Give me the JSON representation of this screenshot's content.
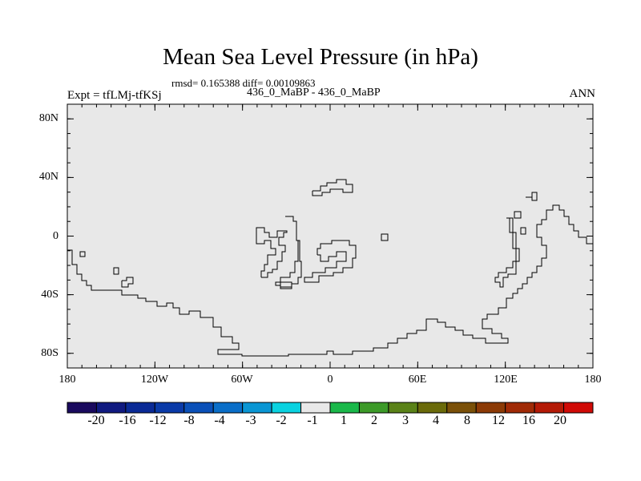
{
  "title": "Mean Sea Level Pressure (in hPa)",
  "stats": "rmsd= 0.165388 diff= 0.00109863",
  "subtitle": "436_0_MaBP - 436_0_MaBP",
  "expt": "Expt = tfLMj-tfKSj",
  "season": "ANN",
  "map": {
    "projection": "cylindrical-equidistant",
    "lon_range": [
      -180,
      180
    ],
    "lat_range": [
      -90,
      90
    ],
    "background_color": "#e8e8e8",
    "coastline_color": "#000000",
    "x_ticks": [
      {
        "lon": -180,
        "label": "180"
      },
      {
        "lon": -120,
        "label": "120W"
      },
      {
        "lon": -60,
        "label": "60W"
      },
      {
        "lon": 0,
        "label": "0"
      },
      {
        "lon": 60,
        "label": "60E"
      },
      {
        "lon": 120,
        "label": "120E"
      },
      {
        "lon": 180,
        "label": "180"
      }
    ],
    "y_ticks": [
      {
        "lat": 80,
        "label": "80N"
      },
      {
        "lat": 40,
        "label": "40N"
      },
      {
        "lat": 0,
        "label": "0"
      },
      {
        "lat": -40,
        "label": "40S"
      },
      {
        "lat": -80,
        "label": "80S"
      }
    ]
  },
  "colorbar": {
    "colors": [
      "#1a0a5e",
      "#101a80",
      "#0a2a96",
      "#0a3aa8",
      "#0a50b8",
      "#0a6ec8",
      "#0a96d4",
      "#0ad2e0",
      "#e8e8e8",
      "#1ab84a",
      "#3c9a28",
      "#5a8218",
      "#6a6a0a",
      "#7a5008",
      "#8c3a06",
      "#a02a06",
      "#b41a06",
      "#d00a06"
    ],
    "labels": [
      "-20",
      "-16",
      "-12",
      "-8",
      "-4",
      "-3",
      "-2",
      "-1",
      "1",
      "2",
      "3",
      "4",
      "8",
      "12",
      "16",
      "20"
    ]
  }
}
